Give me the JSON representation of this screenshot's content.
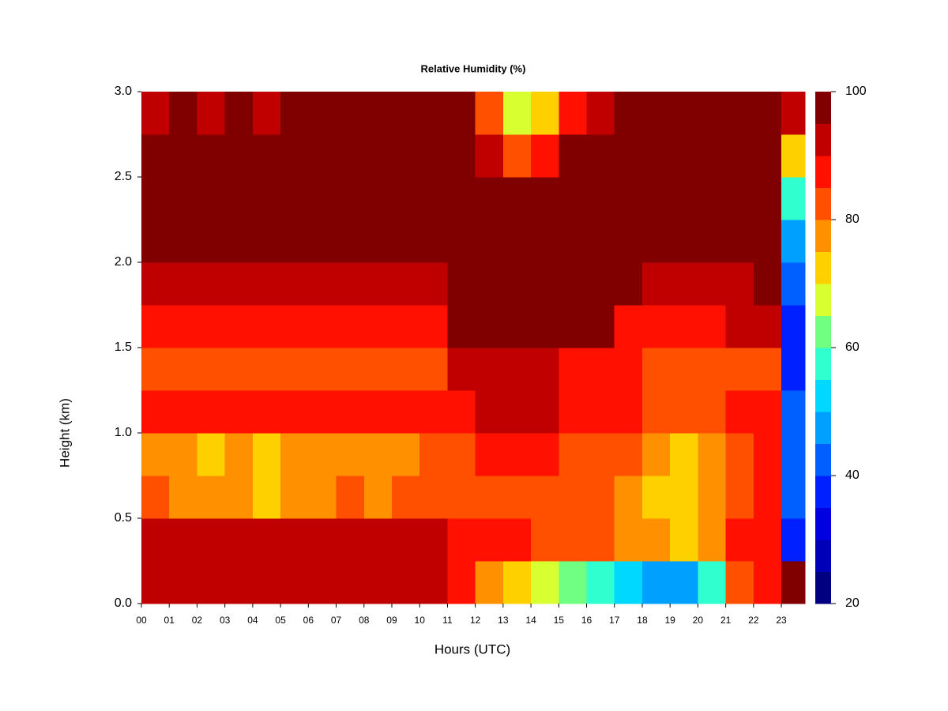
{
  "chart_data": {
    "type": "heatmap",
    "title": "Relative Humidity (%)",
    "xlabel": "Hours (UTC)",
    "ylabel": "Height (km)",
    "x_bins": [
      0,
      1,
      2,
      3,
      4,
      5,
      6,
      7,
      8,
      9,
      10,
      11,
      12,
      13,
      14,
      15,
      16,
      17,
      18,
      19,
      20,
      21,
      22,
      23,
      23.85
    ],
    "y_bins": [
      0,
      0.25,
      0.5,
      0.75,
      1.0,
      1.25,
      1.5,
      1.75,
      2.0,
      2.25,
      2.5,
      2.75,
      3.0
    ],
    "z": [
      [
        90,
        90,
        90,
        90,
        90,
        90,
        90,
        90,
        90,
        90,
        90,
        85,
        75,
        70,
        65,
        60,
        55,
        50,
        48,
        48,
        55,
        80,
        85,
        95
      ],
      [
        90,
        90,
        90,
        90,
        90,
        90,
        90,
        90,
        90,
        90,
        90,
        88,
        87,
        85,
        82,
        80,
        80,
        78,
        75,
        72,
        78,
        85,
        87,
        35
      ],
      [
        80,
        78,
        75,
        75,
        72,
        78,
        78,
        80,
        78,
        80,
        82,
        83,
        82,
        82,
        82,
        80,
        80,
        78,
        72,
        70,
        75,
        82,
        85,
        40
      ],
      [
        78,
        75,
        72,
        75,
        72,
        78,
        78,
        78,
        75,
        78,
        80,
        82,
        85,
        85,
        85,
        83,
        82,
        80,
        75,
        72,
        75,
        82,
        85,
        40
      ],
      [
        85,
        85,
        85,
        85,
        85,
        85,
        85,
        85,
        85,
        85,
        85,
        87,
        90,
        90,
        90,
        87,
        85,
        85,
        80,
        80,
        83,
        85,
        87,
        40
      ],
      [
        80,
        80,
        80,
        80,
        80,
        80,
        80,
        80,
        80,
        80,
        80,
        90,
        90,
        90,
        90,
        87,
        87,
        87,
        80,
        80,
        80,
        83,
        83,
        38
      ],
      [
        87,
        87,
        87,
        87,
        87,
        87,
        87,
        87,
        87,
        87,
        87,
        97,
        97,
        97,
        97,
        97,
        97,
        88,
        88,
        88,
        88,
        90,
        90,
        38
      ],
      [
        90,
        90,
        90,
        90,
        90,
        90,
        90,
        90,
        90,
        90,
        90,
        97,
        97,
        97,
        97,
        97,
        97,
        97,
        92,
        92,
        92,
        92,
        95,
        40
      ],
      [
        97,
        97,
        97,
        97,
        97,
        97,
        97,
        97,
        97,
        97,
        97,
        97,
        97,
        97,
        97,
        97,
        97,
        97,
        97,
        97,
        97,
        97,
        97,
        45
      ],
      [
        97,
        97,
        97,
        97,
        97,
        97,
        97,
        97,
        97,
        97,
        97,
        97,
        97,
        97,
        97,
        97,
        97,
        97,
        97,
        97,
        97,
        97,
        97,
        55
      ],
      [
        97,
        97,
        97,
        97,
        97,
        97,
        97,
        97,
        97,
        97,
        97,
        97,
        90,
        80,
        85,
        97,
        97,
        97,
        97,
        97,
        97,
        97,
        97,
        70
      ],
      [
        92,
        95,
        92,
        95,
        92,
        97,
        97,
        97,
        97,
        97,
        97,
        97,
        80,
        68,
        70,
        85,
        92,
        95,
        95,
        95,
        95,
        95,
        95,
        90
      ]
    ],
    "levels": [
      20,
      25,
      30,
      35,
      40,
      45,
      50,
      55,
      60,
      65,
      70,
      75,
      80,
      85,
      90,
      95,
      100
    ],
    "colors": [
      "#000080",
      "#0000b8",
      "#0000e0",
      "#0020ff",
      "#0060ff",
      "#00a0ff",
      "#00d8ff",
      "#30ffd0",
      "#70ff80",
      "#d8ff30",
      "#ffd000",
      "#ff9000",
      "#ff5000",
      "#ff1000",
      "#c00000",
      "#800000"
    ],
    "xlim": [
      0,
      23.85
    ],
    "ylim": [
      0,
      3.0
    ],
    "xticks": [
      {
        "value": 0,
        "label": "00"
      },
      {
        "value": 1,
        "label": "01"
      },
      {
        "value": 2,
        "label": "02"
      },
      {
        "value": 3,
        "label": "03"
      },
      {
        "value": 4,
        "label": "04"
      },
      {
        "value": 5,
        "label": "05"
      },
      {
        "value": 6,
        "label": "06"
      },
      {
        "value": 7,
        "label": "07"
      },
      {
        "value": 8,
        "label": "08"
      },
      {
        "value": 9,
        "label": "09"
      },
      {
        "value": 10,
        "label": "10"
      },
      {
        "value": 11,
        "label": "11"
      },
      {
        "value": 12,
        "label": "12"
      },
      {
        "value": 13,
        "label": "13"
      },
      {
        "value": 14,
        "label": "14"
      },
      {
        "value": 15,
        "label": "15"
      },
      {
        "value": 16,
        "label": "16"
      },
      {
        "value": 17,
        "label": "17"
      },
      {
        "value": 18,
        "label": "18"
      },
      {
        "value": 19,
        "label": "19"
      },
      {
        "value": 20,
        "label": "20"
      },
      {
        "value": 21,
        "label": "21"
      },
      {
        "value": 22,
        "label": "22"
      },
      {
        "value": 23,
        "label": "23"
      }
    ],
    "yticks": [
      {
        "value": 0,
        "label": "0.0"
      },
      {
        "value": 0.5,
        "label": "0.5"
      },
      {
        "value": 1.0,
        "label": "1.0"
      },
      {
        "value": 1.5,
        "label": "1.5"
      },
      {
        "value": 2.0,
        "label": "2.0"
      },
      {
        "value": 2.5,
        "label": "2.5"
      },
      {
        "value": 3.0,
        "label": "3.0"
      }
    ],
    "clim": [
      20,
      100
    ],
    "cticks": [
      20,
      40,
      60,
      80,
      100
    ]
  }
}
